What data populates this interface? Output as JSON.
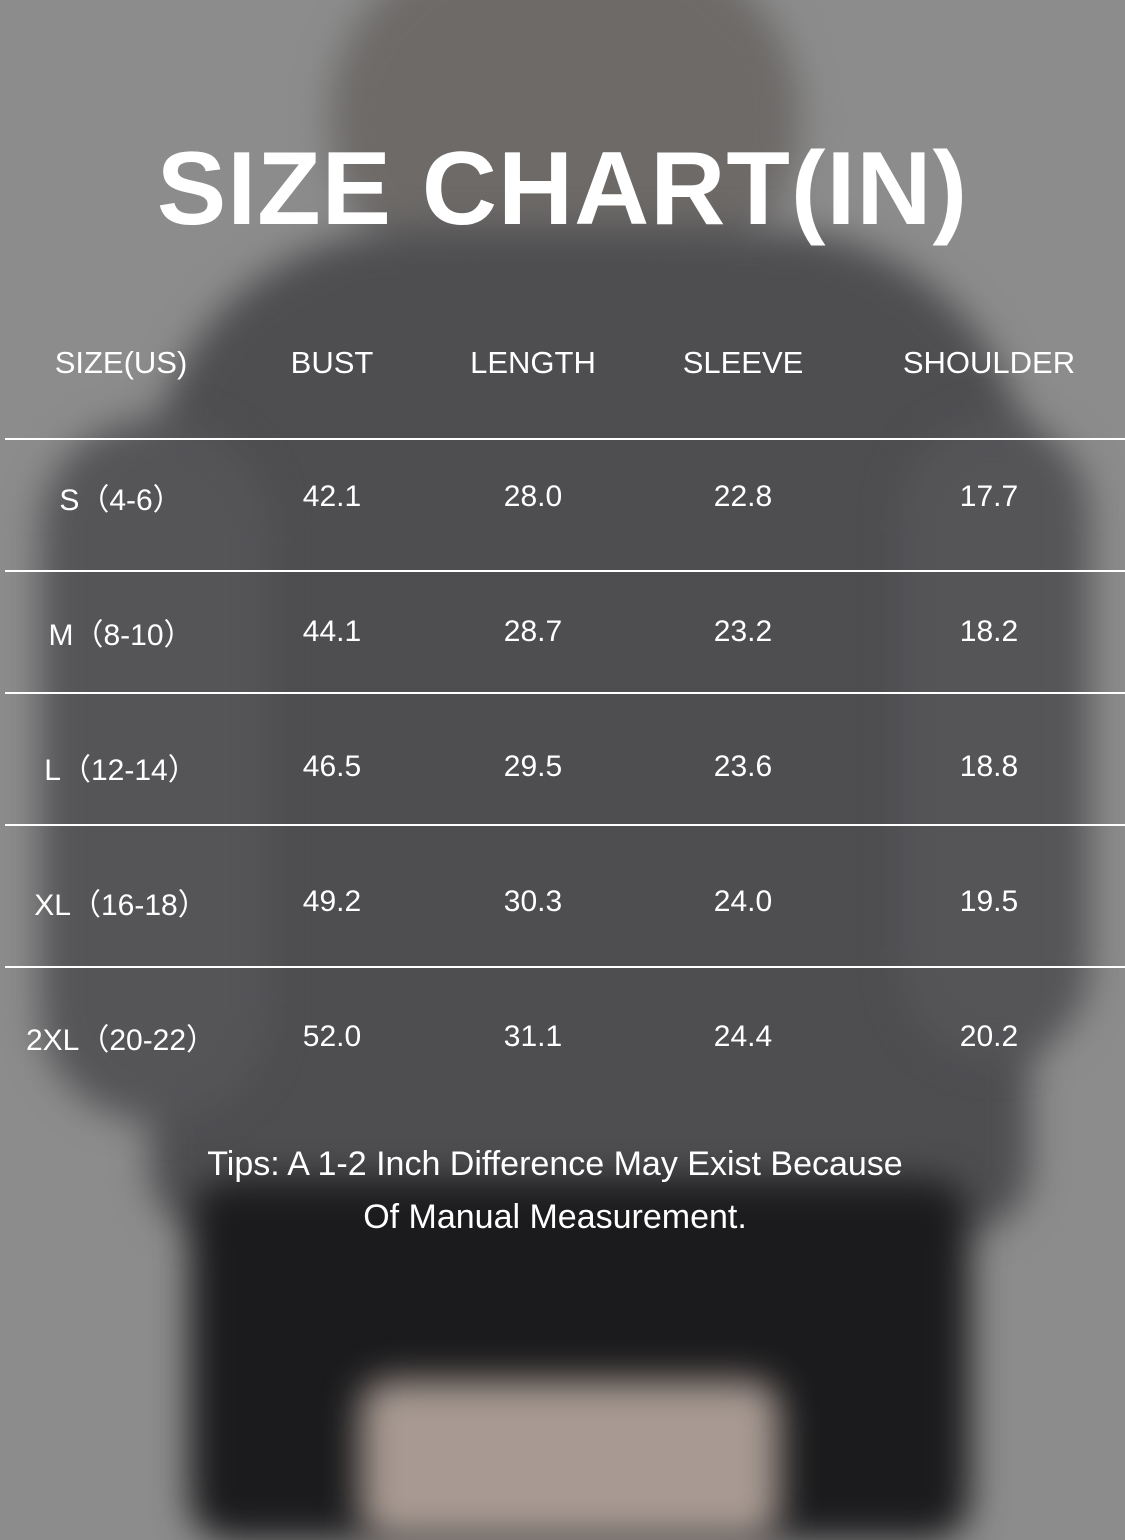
{
  "title": "SIZE CHART(IN)",
  "columns": [
    "SIZE(US)",
    "BUST",
    "LENGTH",
    "SLEEVE",
    "SHOULDER"
  ],
  "rows": [
    [
      "S（4-6）",
      "42.1",
      "28.0",
      "22.8",
      "17.7"
    ],
    [
      "M（8-10）",
      "44.1",
      "28.7",
      "23.2",
      "18.2"
    ],
    [
      "L（12-14）",
      "46.5",
      "29.5",
      "23.6",
      "18.8"
    ],
    [
      "XL（16-18）",
      "49.2",
      "30.3",
      "24.0",
      "19.5"
    ],
    [
      "2XL（20-22）",
      "52.0",
      "31.1",
      "24.4",
      "20.2"
    ]
  ],
  "tips": {
    "line1": "Tips: A 1-2 Inch Difference May Exist Because",
    "line2": "Of Manual Measurement."
  }
}
